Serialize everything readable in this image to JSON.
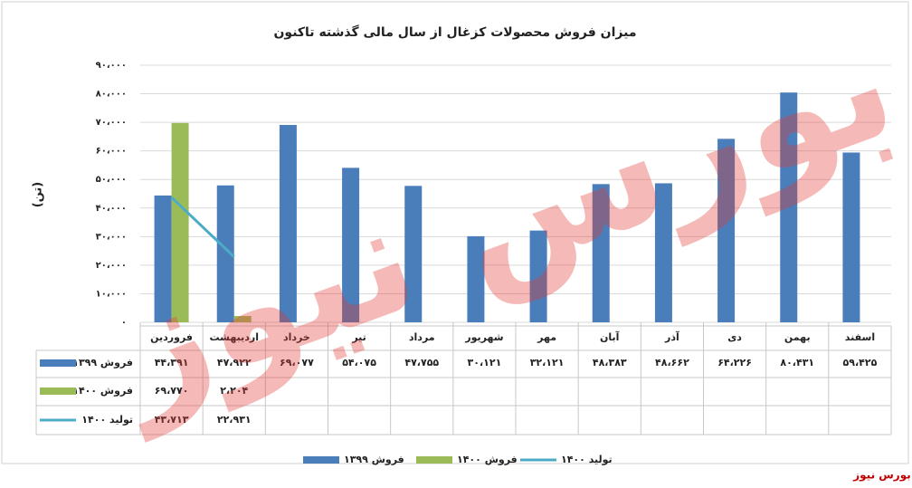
{
  "chart_data": {
    "type": "bar",
    "title": "میزان فروش محصولات کزغال از سال مالی گذشته تاکنون",
    "y_label": "(تن)",
    "watermark": "بورس نیوز",
    "source": "بورس نیوز",
    "categories": [
      "فروردین",
      "اردیبهشت",
      "خرداد",
      "تیر",
      "مرداد",
      "شهریور",
      "مهر",
      "آبان",
      "آذر",
      "دی",
      "بهمن",
      "اسفند"
    ],
    "series": [
      {
        "name": "فروش ۱۳۹۹",
        "type": "bar",
        "color": "#4a7ebb",
        "values": [
          44391,
          47922,
          69077,
          54075,
          47755,
          30121,
          32121,
          48383,
          48662,
          64226,
          80431,
          59425
        ],
        "value_labels": [
          "۴۴،۳۹۱",
          "۴۷،۹۲۲",
          "۶۹،۰۷۷",
          "۵۴،۰۷۵",
          "۴۷،۷۵۵",
          "۳۰،۱۲۱",
          "۳۲،۱۲۱",
          "۴۸،۳۸۳",
          "۴۸،۶۶۲",
          "۶۴،۲۲۶",
          "۸۰،۴۳۱",
          "۵۹،۴۲۵"
        ]
      },
      {
        "name": "فروش ۱۴۰۰",
        "type": "bar",
        "color": "#9bbb59",
        "values": [
          69770,
          2204,
          null,
          null,
          null,
          null,
          null,
          null,
          null,
          null,
          null,
          null
        ],
        "value_labels": [
          "۶۹،۷۷۰",
          "۲،۲۰۴",
          null,
          null,
          null,
          null,
          null,
          null,
          null,
          null,
          null,
          null
        ]
      },
      {
        "name": "تولید ۱۴۰۰",
        "type": "line",
        "color": "#4bacc6",
        "values": [
          43713,
          22931,
          null,
          null,
          null,
          null,
          null,
          null,
          null,
          null,
          null,
          null
        ],
        "value_labels": [
          "۴۳،۷۱۳",
          "۲۲،۹۳۱",
          null,
          null,
          null,
          null,
          null,
          null,
          null,
          null,
          null,
          null
        ]
      }
    ],
    "ylim": [
      0,
      90000
    ],
    "yticks": [
      {
        "value": 0,
        "label": "۰"
      },
      {
        "value": 10000,
        "label": "۱۰،۰۰۰"
      },
      {
        "value": 20000,
        "label": "۲۰،۰۰۰"
      },
      {
        "value": 30000,
        "label": "۳۰،۰۰۰"
      },
      {
        "value": 40000,
        "label": "۴۰،۰۰۰"
      },
      {
        "value": 50000,
        "label": "۵۰،۰۰۰"
      },
      {
        "value": 60000,
        "label": "۶۰،۰۰۰"
      },
      {
        "value": 70000,
        "label": "۷۰،۰۰۰"
      },
      {
        "value": 80000,
        "label": "۸۰،۰۰۰"
      },
      {
        "value": 90000,
        "label": "۹۰،۰۰۰"
      }
    ],
    "grid": true,
    "legend": "bottom"
  }
}
